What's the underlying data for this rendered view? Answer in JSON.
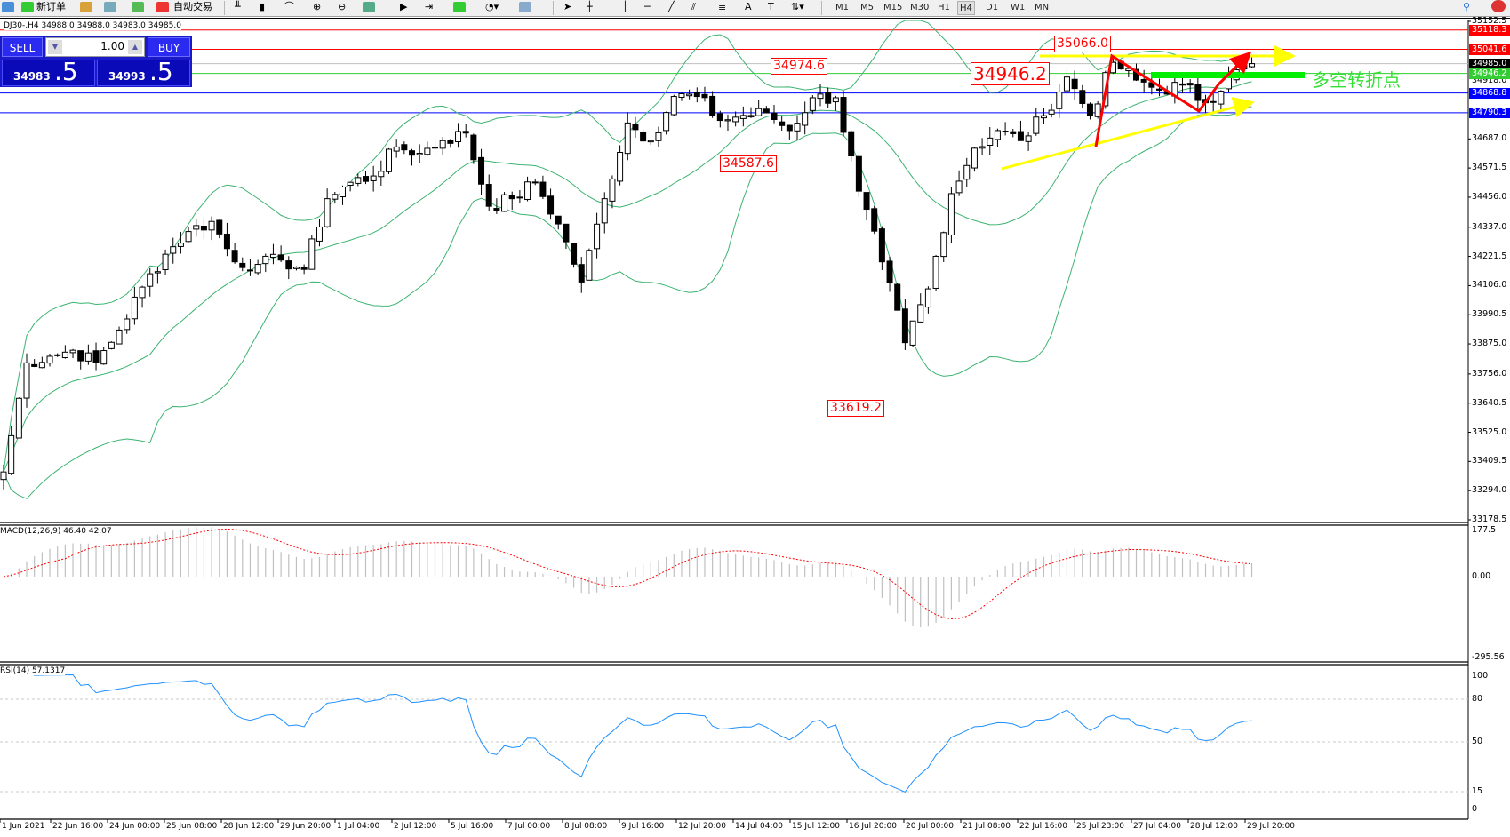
{
  "toolbar": {
    "new_order": "新订单",
    "auto_trading": "自动交易",
    "timeframes": [
      "M1",
      "M5",
      "M15",
      "M30",
      "H1",
      "H4",
      "D1",
      "W1",
      "MN"
    ],
    "active_timeframe": "H4",
    "icons": [
      "new-order-icon",
      "history-icon",
      "signals-icon",
      "market-icon",
      "autotrading-icon",
      "bar-chart-icon",
      "candle-chart-icon",
      "line-chart-icon",
      "zoom-in-icon",
      "zoom-out-icon",
      "tile-icon",
      "autoscroll-icon",
      "chart-shift-icon",
      "indicators-icon",
      "periods-icon",
      "templates-icon",
      "cursor-icon",
      "crosshair-icon",
      "vertical-line-icon",
      "horizontal-line-icon",
      "trendline-icon",
      "equidistant-channel-icon",
      "fibonacci-icon",
      "text-icon",
      "text-label-icon",
      "arrows-icon",
      "search-icon",
      "notification-icon"
    ]
  },
  "chart": {
    "title": "DJ30-,H4  34988.0 34988.0 34983.0 34985.0",
    "symbol": "DJ30-",
    "approx_closes": [
      33368,
      33800,
      33826,
      33850,
      33800,
      33930,
      34100,
      34230,
      34320,
      34360,
      34200,
      34190,
      34207,
      34170,
      34450,
      34515,
      34540,
      34655,
      34630,
      34680,
      34710,
      34420,
      34450,
      34515,
      34350,
      34120,
      34450,
      34750,
      34680,
      34855,
      34855,
      34760,
      34780,
      34790,
      34720,
      34850,
      34850,
      34480,
      34200,
      33880,
      34093,
      34470,
      34650,
      34720,
      34680,
      34779,
      34932,
      34780,
      34990,
      34920,
      34880,
      34900,
      34830,
      34930,
      34985
    ],
    "price_axis": [
      "35152.5",
      "34687.0",
      "34571.5",
      "34456.0",
      "34337.0",
      "34221.5",
      "34106.0",
      "33990.5",
      "33875.0",
      "33756.0",
      "33640.5",
      "33525.0",
      "33409.5",
      "33294.0",
      "33178.5"
    ],
    "price_range": [
      33178.5,
      35152.5
    ],
    "levels": [
      {
        "price": "35118.3",
        "color": "#ff0000"
      },
      {
        "price": "35041.6",
        "color": "#ff0000"
      },
      {
        "price": "34985.0",
        "color": "#000000",
        "line": "#c0c0c0"
      },
      {
        "price": "34946.2",
        "color": "#32cd32"
      },
      {
        "price": "34868.8",
        "color": "#0000ff"
      },
      {
        "price": "34790.3",
        "color": "#0000ff"
      }
    ],
    "extra_axis_label": "34918.0",
    "annotations": [
      "34974.6",
      "34587.6",
      "33619.2",
      "35066.0",
      "34946.2"
    ],
    "turning_point_text": "多空转折点",
    "time_axis": [
      "1 Jun 2021",
      "22 Jun 16:00",
      "24 Jun 00:00",
      "25 Jun 08:00",
      "28 Jun 12:00",
      "29 Jun 20:00",
      "1 Jul 04:00",
      "2 Jul 12:00",
      "5 Jul 16:00",
      "7 Jul 00:00",
      "8 Jul 08:00",
      "9 Jul 16:00",
      "12 Jul 20:00",
      "14 Jul 04:00",
      "15 Jul 12:00",
      "16 Jul 20:00",
      "20 Jul 00:00",
      "21 Jul 08:00",
      "22 Jul 16:00",
      "25 Jul 23:00",
      "27 Jul 04:00",
      "28 Jul 12:00",
      "29 Jul 20:00"
    ],
    "colors": {
      "bands": "#3cb371",
      "up": "#ffffff",
      "down": "#000000",
      "macd_hist": "#c0c0c0",
      "macd_signal": "#ff0000",
      "rsi": "#1e90ff",
      "arrows": "#ffff00",
      "zigzag": "#ff0000",
      "turning_bar": "#00ee00"
    }
  },
  "trade_panel": {
    "sell_label": "SELL",
    "buy_label": "BUY",
    "lot": "1.00",
    "sell_price_main": "34983",
    "sell_price_frac": ".5",
    "buy_price_main": "34993",
    "buy_price_frac": ".5"
  },
  "macd": {
    "label": "MACD(12,26,9) 46.40 42.07",
    "axis": [
      "177.5",
      "0.00",
      "-295.56"
    ]
  },
  "rsi": {
    "label": "RSI(14) 57.1317",
    "axis": [
      "100",
      "80",
      "50",
      "15",
      "0"
    ]
  }
}
